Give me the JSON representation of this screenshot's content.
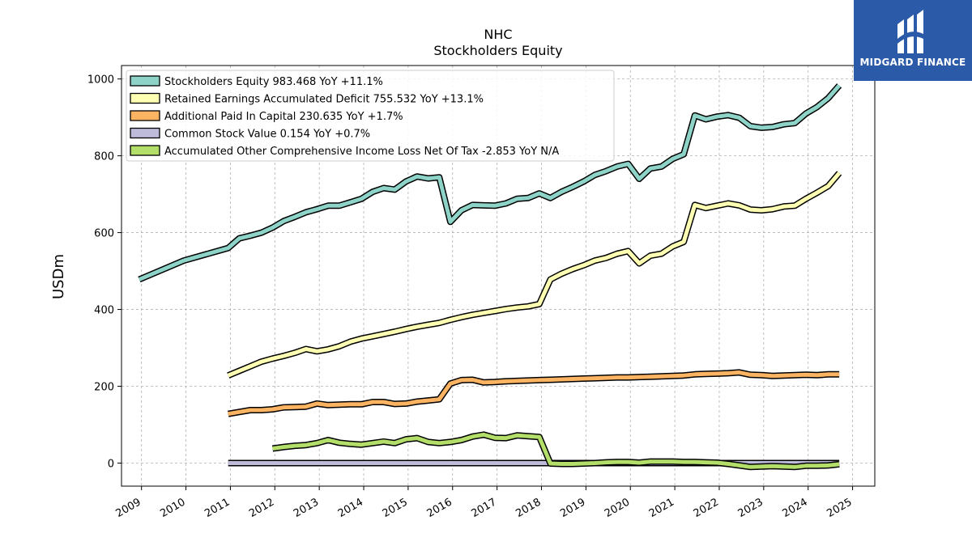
{
  "brand": {
    "name": "MIDGARD FINANCE",
    "bg_color": "#2b5aa8",
    "icon": "midgard-logo-icon"
  },
  "chart_data": {
    "type": "line",
    "title": "NHC",
    "subtitle": "Stockholders  Equity",
    "ylabel": "USDm",
    "xlabel": "",
    "xlim": [
      2008.55,
      2025.5
    ],
    "ylim": [
      -60,
      1035
    ],
    "y_ticks": [
      0,
      200,
      400,
      600,
      800,
      1000
    ],
    "x_ticks": [
      2009,
      2010,
      2011,
      2012,
      2013,
      2014,
      2015,
      2016,
      2017,
      2018,
      2019,
      2020,
      2021,
      2022,
      2023,
      2024,
      2025
    ],
    "grid": true,
    "legend_position": "top-left",
    "series": [
      {
        "name": "Stockholders Equity",
        "legend": "Stockholders Equity  983.468 YoY +11.1%",
        "color": "#8dd3c7",
        "x": [
          2008.95,
          2009.95,
          2010.95,
          2011.2,
          2011.45,
          2011.7,
          2011.95,
          2012.2,
          2012.45,
          2012.7,
          2012.95,
          2013.2,
          2013.45,
          2013.7,
          2013.95,
          2014.2,
          2014.45,
          2014.7,
          2014.95,
          2015.2,
          2015.45,
          2015.7,
          2015.95,
          2016.2,
          2016.45,
          2016.7,
          2016.95,
          2017.2,
          2017.45,
          2017.7,
          2017.95,
          2018.2,
          2018.45,
          2018.7,
          2018.95,
          2019.2,
          2019.45,
          2019.7,
          2019.95,
          2020.2,
          2020.45,
          2020.7,
          2020.95,
          2021.2,
          2021.45,
          2021.7,
          2021.95,
          2022.2,
          2022.45,
          2022.7,
          2022.95,
          2023.2,
          2023.45,
          2023.7,
          2023.95,
          2024.2,
          2024.45,
          2024.7
        ],
        "y": [
          478,
          527,
          560,
          585,
          592,
          600,
          613,
          630,
          641,
          653,
          661,
          670,
          670,
          679,
          688,
          706,
          716,
          712,
          733,
          746,
          741,
          744,
          628,
          658,
          672,
          671,
          670,
          676,
          688,
          690,
          702,
          690,
          706,
          719,
          733,
          750,
          760,
          772,
          779,
          740,
          767,
          772,
          792,
          804,
          905,
          895,
          902,
          906,
          899,
          877,
          873,
          875,
          882,
          885,
          910,
          927,
          950,
          983
        ]
      },
      {
        "name": "Retained Earnings Accumulated Deficit",
        "legend": "Retained Earnings Accumulated Deficit  755.532 YoY +13.1%",
        "color": "#ffffb3",
        "x": [
          2010.95,
          2011.2,
          2011.45,
          2011.7,
          2011.95,
          2012.2,
          2012.45,
          2012.7,
          2012.95,
          2013.2,
          2013.45,
          2013.7,
          2013.95,
          2014.2,
          2014.45,
          2014.7,
          2014.95,
          2015.2,
          2015.45,
          2015.7,
          2015.95,
          2016.2,
          2016.45,
          2016.7,
          2016.95,
          2017.2,
          2017.45,
          2017.7,
          2017.95,
          2018.2,
          2018.45,
          2018.7,
          2018.95,
          2019.2,
          2019.45,
          2019.7,
          2019.95,
          2020.2,
          2020.45,
          2020.7,
          2020.95,
          2021.2,
          2021.45,
          2021.7,
          2021.95,
          2022.2,
          2022.45,
          2022.7,
          2022.95,
          2023.2,
          2023.45,
          2023.7,
          2023.95,
          2024.2,
          2024.45,
          2024.7
        ],
        "y": [
          228,
          240,
          252,
          264,
          272,
          279,
          287,
          297,
          291,
          296,
          304,
          316,
          324,
          330,
          336,
          342,
          349,
          355,
          360,
          365,
          373,
          380,
          386,
          391,
          396,
          401,
          405,
          408,
          414,
          478,
          493,
          505,
          515,
          527,
          534,
          545,
          552,
          520,
          540,
          545,
          564,
          576,
          672,
          664,
          670,
          676,
          671,
          660,
          658,
          661,
          668,
          670,
          688,
          704,
          721,
          755
        ]
      },
      {
        "name": "Additional Paid In Capital",
        "legend": "Additional Paid In Capital  230.635 YoY +1.7%",
        "color": "#fdb462",
        "x": [
          2008.95,
          2009.95,
          2010.95,
          2011.2,
          2011.45,
          2011.7,
          2011.95,
          2012.2,
          2012.45,
          2012.7,
          2012.95,
          2013.2,
          2013.45,
          2013.7,
          2013.95,
          2014.2,
          2014.45,
          2014.7,
          2014.95,
          2015.2,
          2015.45,
          2015.7,
          2015.95,
          2016.2,
          2016.45,
          2016.7,
          2016.95,
          2017.2,
          2017.45,
          2017.7,
          2017.95,
          2018.2,
          2018.45,
          2018.7,
          2018.95,
          2019.2,
          2019.45,
          2019.7,
          2019.95,
          2020.2,
          2020.45,
          2020.7,
          2020.95,
          2021.2,
          2021.45,
          2021.7,
          2021.95,
          2022.2,
          2022.45,
          2022.7,
          2022.95,
          2023.2,
          2023.45,
          2023.7,
          2023.95,
          2024.2,
          2024.45,
          2024.7
        ],
        "y": [
          null,
          null,
          128,
          133,
          138,
          138,
          140,
          145,
          146,
          147,
          155,
          151,
          152,
          153,
          153,
          159,
          159,
          154,
          155,
          160,
          163,
          166,
          207,
          216,
          217,
          210,
          211,
          213,
          214,
          215,
          216,
          217,
          218,
          219,
          220,
          221,
          222,
          223,
          223,
          224,
          225,
          226,
          227,
          228,
          231,
          232,
          233,
          234,
          236,
          230,
          229,
          227,
          228,
          229,
          230,
          229,
          231,
          231
        ]
      },
      {
        "name": "Common Stock Value",
        "legend": "Common Stock Value  0.154 YoY +0.7%",
        "color": "#bebada",
        "x": [
          2010.95,
          2024.7
        ],
        "y": [
          0,
          0
        ]
      },
      {
        "name": "Accumulated Other Comprehensive Income Loss Net Of Tax",
        "legend": "Accumulated Other Comprehensive Income Loss Net Of Tax  -2.853 YoY N/A",
        "color": "#b3de69",
        "x": [
          2011.95,
          2012.2,
          2012.45,
          2012.7,
          2012.95,
          2013.2,
          2013.45,
          2013.7,
          2013.95,
          2014.2,
          2014.45,
          2014.7,
          2014.95,
          2015.2,
          2015.45,
          2015.7,
          2015.95,
          2016.2,
          2016.45,
          2016.7,
          2016.95,
          2017.2,
          2017.45,
          2017.7,
          2017.95,
          2018.2,
          2018.45,
          2018.7,
          2018.95,
          2019.2,
          2019.45,
          2019.7,
          2019.95,
          2020.2,
          2020.45,
          2020.7,
          2020.95,
          2021.2,
          2021.45,
          2021.7,
          2021.95,
          2022.2,
          2022.45,
          2022.7,
          2022.95,
          2023.2,
          2023.45,
          2023.7,
          2023.95,
          2024.2,
          2024.45,
          2024.7
        ],
        "y": [
          38,
          42,
          45,
          47,
          52,
          60,
          53,
          50,
          48,
          52,
          56,
          52,
          62,
          65,
          55,
          52,
          55,
          60,
          69,
          74,
          66,
          65,
          72,
          70,
          68,
          -1,
          -2,
          -2,
          -1,
          0,
          2,
          3,
          3,
          1,
          4,
          4,
          4,
          3,
          3,
          2,
          1,
          -2,
          -6,
          -10,
          -9,
          -8,
          -9,
          -10,
          -7,
          -7,
          -6,
          -3
        ]
      }
    ]
  }
}
